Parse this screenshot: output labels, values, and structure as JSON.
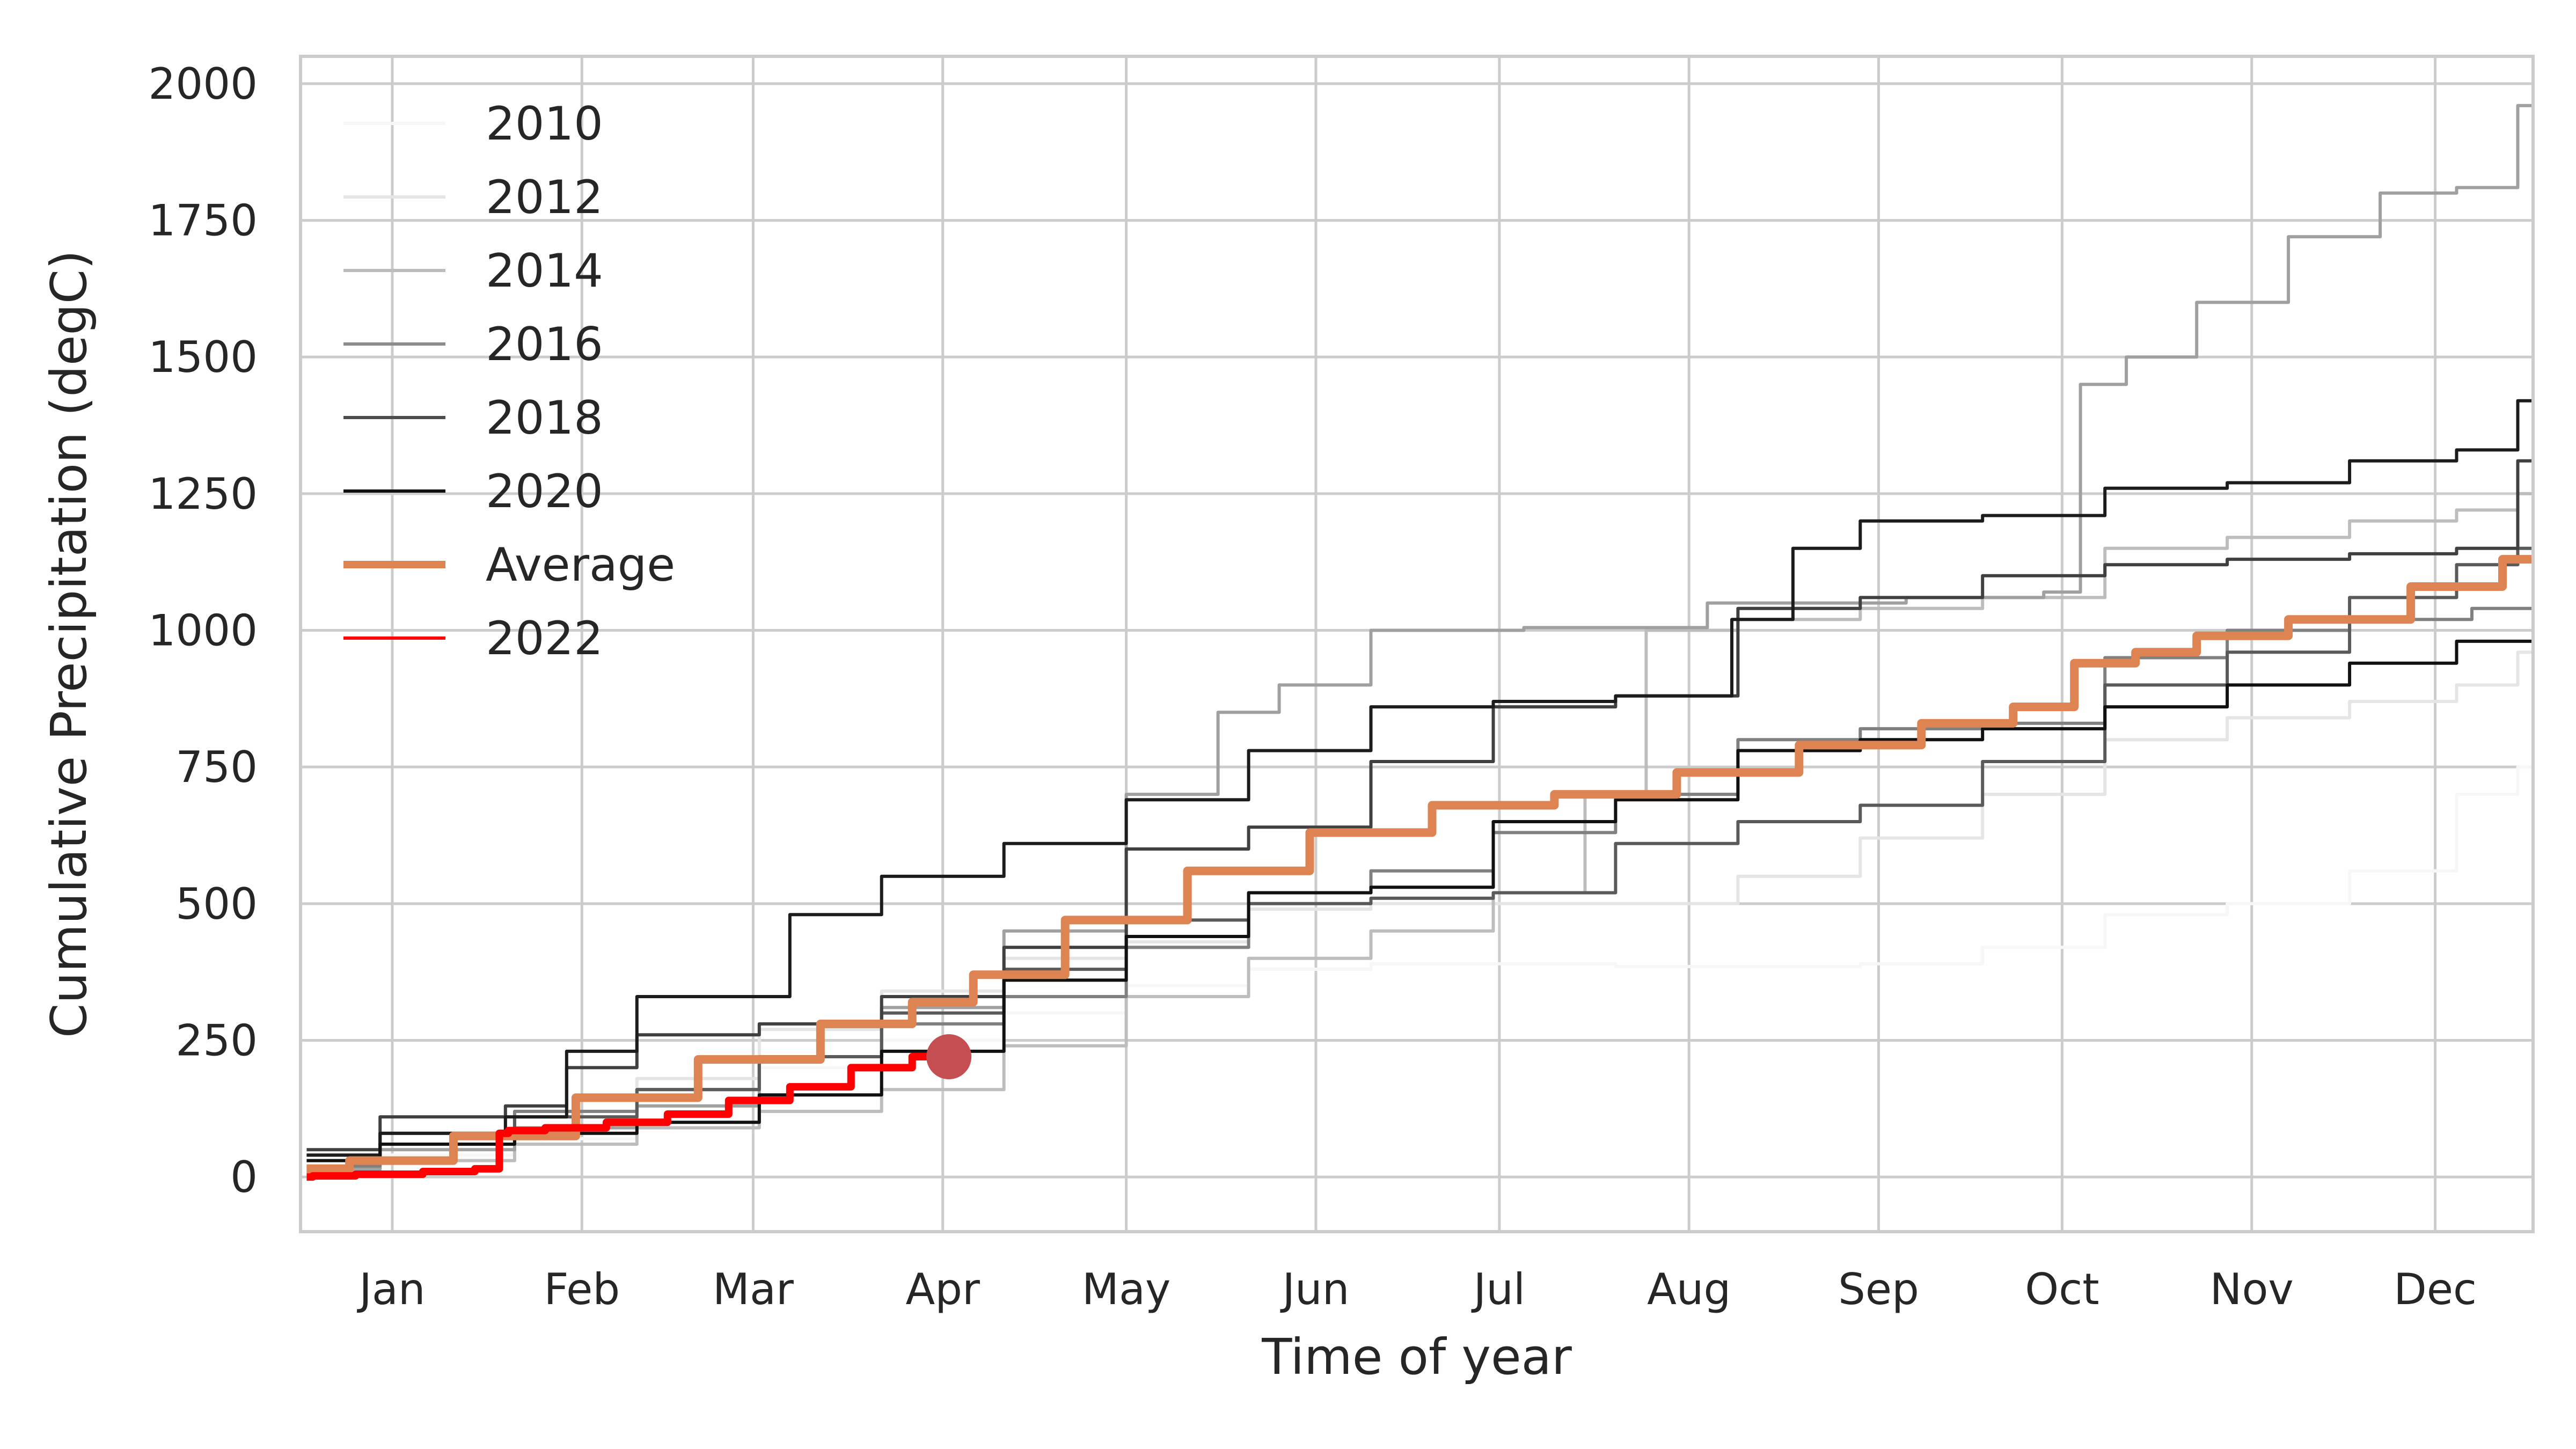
{
  "chart_data": {
    "type": "line",
    "title": "",
    "xlabel": "Time of year",
    "ylabel": "Cumulative Precipitation (degC)",
    "ylim": [
      -100,
      2050
    ],
    "xlim": [
      -15,
      350
    ],
    "grid": true,
    "legend_position": "upper-left",
    "x_unit": "day of year",
    "x_ticks": [
      {
        "label": "Jan",
        "day": 0
      },
      {
        "label": "Feb",
        "day": 31
      },
      {
        "label": "Mar",
        "day": 59
      },
      {
        "label": "Apr",
        "day": 90
      },
      {
        "label": "May",
        "day": 120
      },
      {
        "label": "Jun",
        "day": 151
      },
      {
        "label": "Jul",
        "day": 181
      },
      {
        "label": "Aug",
        "day": 212
      },
      {
        "label": "Sep",
        "day": 243
      },
      {
        "label": "Oct",
        "day": 273
      },
      {
        "label": "Nov",
        "day": 304
      },
      {
        "label": "Dec",
        "day": 334
      }
    ],
    "y_ticks": [
      0,
      250,
      500,
      750,
      1000,
      1250,
      1500,
      1750,
      2000
    ],
    "series": [
      {
        "name": "2010",
        "color": "#f7f7f7",
        "width": 6,
        "x": [
          -14,
          10,
          30,
          50,
          70,
          90,
          110,
          130,
          150,
          170,
          190,
          210,
          230,
          250,
          270,
          290,
          310,
          330,
          345,
          350
        ],
        "y": [
          20,
          40,
          70,
          130,
          200,
          250,
          300,
          350,
          380,
          390,
          390,
          385,
          385,
          390,
          420,
          480,
          500,
          560,
          700,
          750
        ]
      },
      {
        "name": "2012",
        "color": "#e5e5e5",
        "width": 6,
        "x": [
          -14,
          10,
          30,
          50,
          70,
          90,
          110,
          130,
          150,
          170,
          190,
          210,
          230,
          250,
          270,
          290,
          310,
          330,
          345,
          350
        ],
        "y": [
          30,
          60,
          110,
          180,
          270,
          340,
          400,
          430,
          490,
          500,
          500,
          500,
          550,
          620,
          700,
          800,
          840,
          870,
          900,
          960
        ]
      },
      {
        "name": "2014",
        "color": "#bdbdbd",
        "width": 6,
        "x": [
          -14,
          10,
          30,
          50,
          70,
          90,
          110,
          130,
          150,
          170,
          190,
          200,
          210,
          230,
          250,
          270,
          290,
          310,
          330,
          345,
          350
        ],
        "y": [
          10,
          30,
          60,
          90,
          120,
          160,
          240,
          330,
          400,
          450,
          520,
          700,
          1000,
          1020,
          1040,
          1060,
          1150,
          1170,
          1200,
          1220,
          1250
        ]
      },
      {
        "name": "2016",
        "color": "#a0a0a0",
        "width": 6,
        "x": [
          -14,
          10,
          30,
          50,
          70,
          90,
          110,
          130,
          140,
          150,
          170,
          200,
          230,
          265,
          275,
          277,
          290,
          300,
          320,
          330,
          345,
          350
        ],
        "y": [
          15,
          50,
          90,
          130,
          220,
          310,
          450,
          700,
          850,
          900,
          1000,
          1005,
          1050,
          1060,
          1070,
          1450,
          1500,
          1600,
          1720,
          1800,
          1810,
          1960
        ]
      },
      {
        "name": "2018",
        "color": "#808080",
        "width": 6,
        "x": [
          -14,
          10,
          30,
          50,
          70,
          90,
          110,
          130,
          150,
          170,
          190,
          210,
          230,
          250,
          270,
          290,
          310,
          330,
          350
        ],
        "y": [
          20,
          60,
          120,
          160,
          220,
          280,
          330,
          420,
          520,
          560,
          630,
          700,
          800,
          820,
          830,
          950,
          1000,
          1020,
          1040
        ]
      },
      {
        "name": "2020",
        "color": "#5a5a5a",
        "width": 6,
        "x": [
          -14,
          10,
          30,
          50,
          70,
          90,
          110,
          130,
          150,
          170,
          190,
          210,
          230,
          250,
          270,
          290,
          310,
          330,
          345,
          350
        ],
        "y": [
          40,
          80,
          110,
          160,
          220,
          300,
          380,
          470,
          500,
          510,
          520,
          610,
          650,
          680,
          760,
          900,
          960,
          1060,
          1120,
          1150
        ]
      },
      {
        "name": "2020",
        "color": "#404040",
        "width": 6,
        "x": [
          -14,
          10,
          27,
          30,
          50,
          70,
          90,
          110,
          130,
          150,
          170,
          190,
          210,
          230,
          250,
          270,
          290,
          310,
          330,
          345,
          350
        ],
        "y": [
          50,
          110,
          130,
          200,
          260,
          280,
          330,
          420,
          600,
          640,
          760,
          860,
          880,
          1040,
          1060,
          1100,
          1120,
          1130,
          1140,
          1150,
          1310
        ]
      },
      {
        "name": "2020",
        "color": "#1c1c1c",
        "width": 6,
        "x": [
          -14,
          10,
          27,
          30,
          50,
          60,
          70,
          90,
          110,
          130,
          150,
          170,
          190,
          210,
          228,
          230,
          250,
          270,
          290,
          310,
          330,
          345,
          350
        ],
        "y": [
          40,
          80,
          110,
          230,
          330,
          330,
          480,
          550,
          610,
          690,
          780,
          860,
          870,
          880,
          1020,
          1150,
          1200,
          1210,
          1260,
          1270,
          1310,
          1330,
          1420
        ]
      },
      {
        "name": "2020",
        "color": "#111111",
        "width": 6,
        "x": [
          -14,
          10,
          30,
          50,
          70,
          90,
          110,
          130,
          150,
          170,
          190,
          210,
          230,
          250,
          270,
          290,
          310,
          330,
          345,
          350
        ],
        "y": [
          30,
          60,
          80,
          100,
          150,
          230,
          360,
          440,
          520,
          530,
          650,
          690,
          780,
          800,
          820,
          860,
          900,
          940,
          980,
          980
        ]
      },
      {
        "name": "Average",
        "color": "#dd8452",
        "width": 16,
        "x": [
          -14,
          0,
          20,
          40,
          60,
          80,
          90,
          100,
          120,
          140,
          160,
          180,
          200,
          220,
          240,
          260,
          270,
          280,
          290,
          300,
          320,
          340,
          350
        ],
        "y": [
          15,
          30,
          75,
          145,
          215,
          280,
          320,
          370,
          470,
          560,
          630,
          680,
          700,
          740,
          790,
          830,
          860,
          940,
          960,
          990,
          1020,
          1080,
          1130
        ]
      },
      {
        "name": "2022",
        "color": "#ff0000",
        "width": 14,
        "x": [
          -14,
          -12,
          0,
          10,
          17,
          18,
          20,
          30,
          40,
          50,
          60,
          70,
          80,
          90
        ],
        "y": [
          0,
          2,
          5,
          10,
          15,
          80,
          85,
          90,
          100,
          115,
          140,
          165,
          200,
          220
        ]
      }
    ],
    "legend": [
      {
        "name": "2010",
        "color": "#f7f7f7",
        "width": 6
      },
      {
        "name": "2012",
        "color": "#e5e5e5",
        "width": 6
      },
      {
        "name": "2014",
        "color": "#bdbdbd",
        "width": 6
      },
      {
        "name": "2016",
        "color": "#8c8c8c",
        "width": 6
      },
      {
        "name": "2018",
        "color": "#4d4d4d",
        "width": 6
      },
      {
        "name": "2020",
        "color": "#111111",
        "width": 6
      },
      {
        "name": "Average",
        "color": "#dd8452",
        "width": 14
      },
      {
        "name": "2022",
        "color": "#ff0000",
        "width": 6
      }
    ],
    "marker": {
      "series": "2022",
      "x": 91,
      "y": 220,
      "color": "#c44e52"
    }
  }
}
